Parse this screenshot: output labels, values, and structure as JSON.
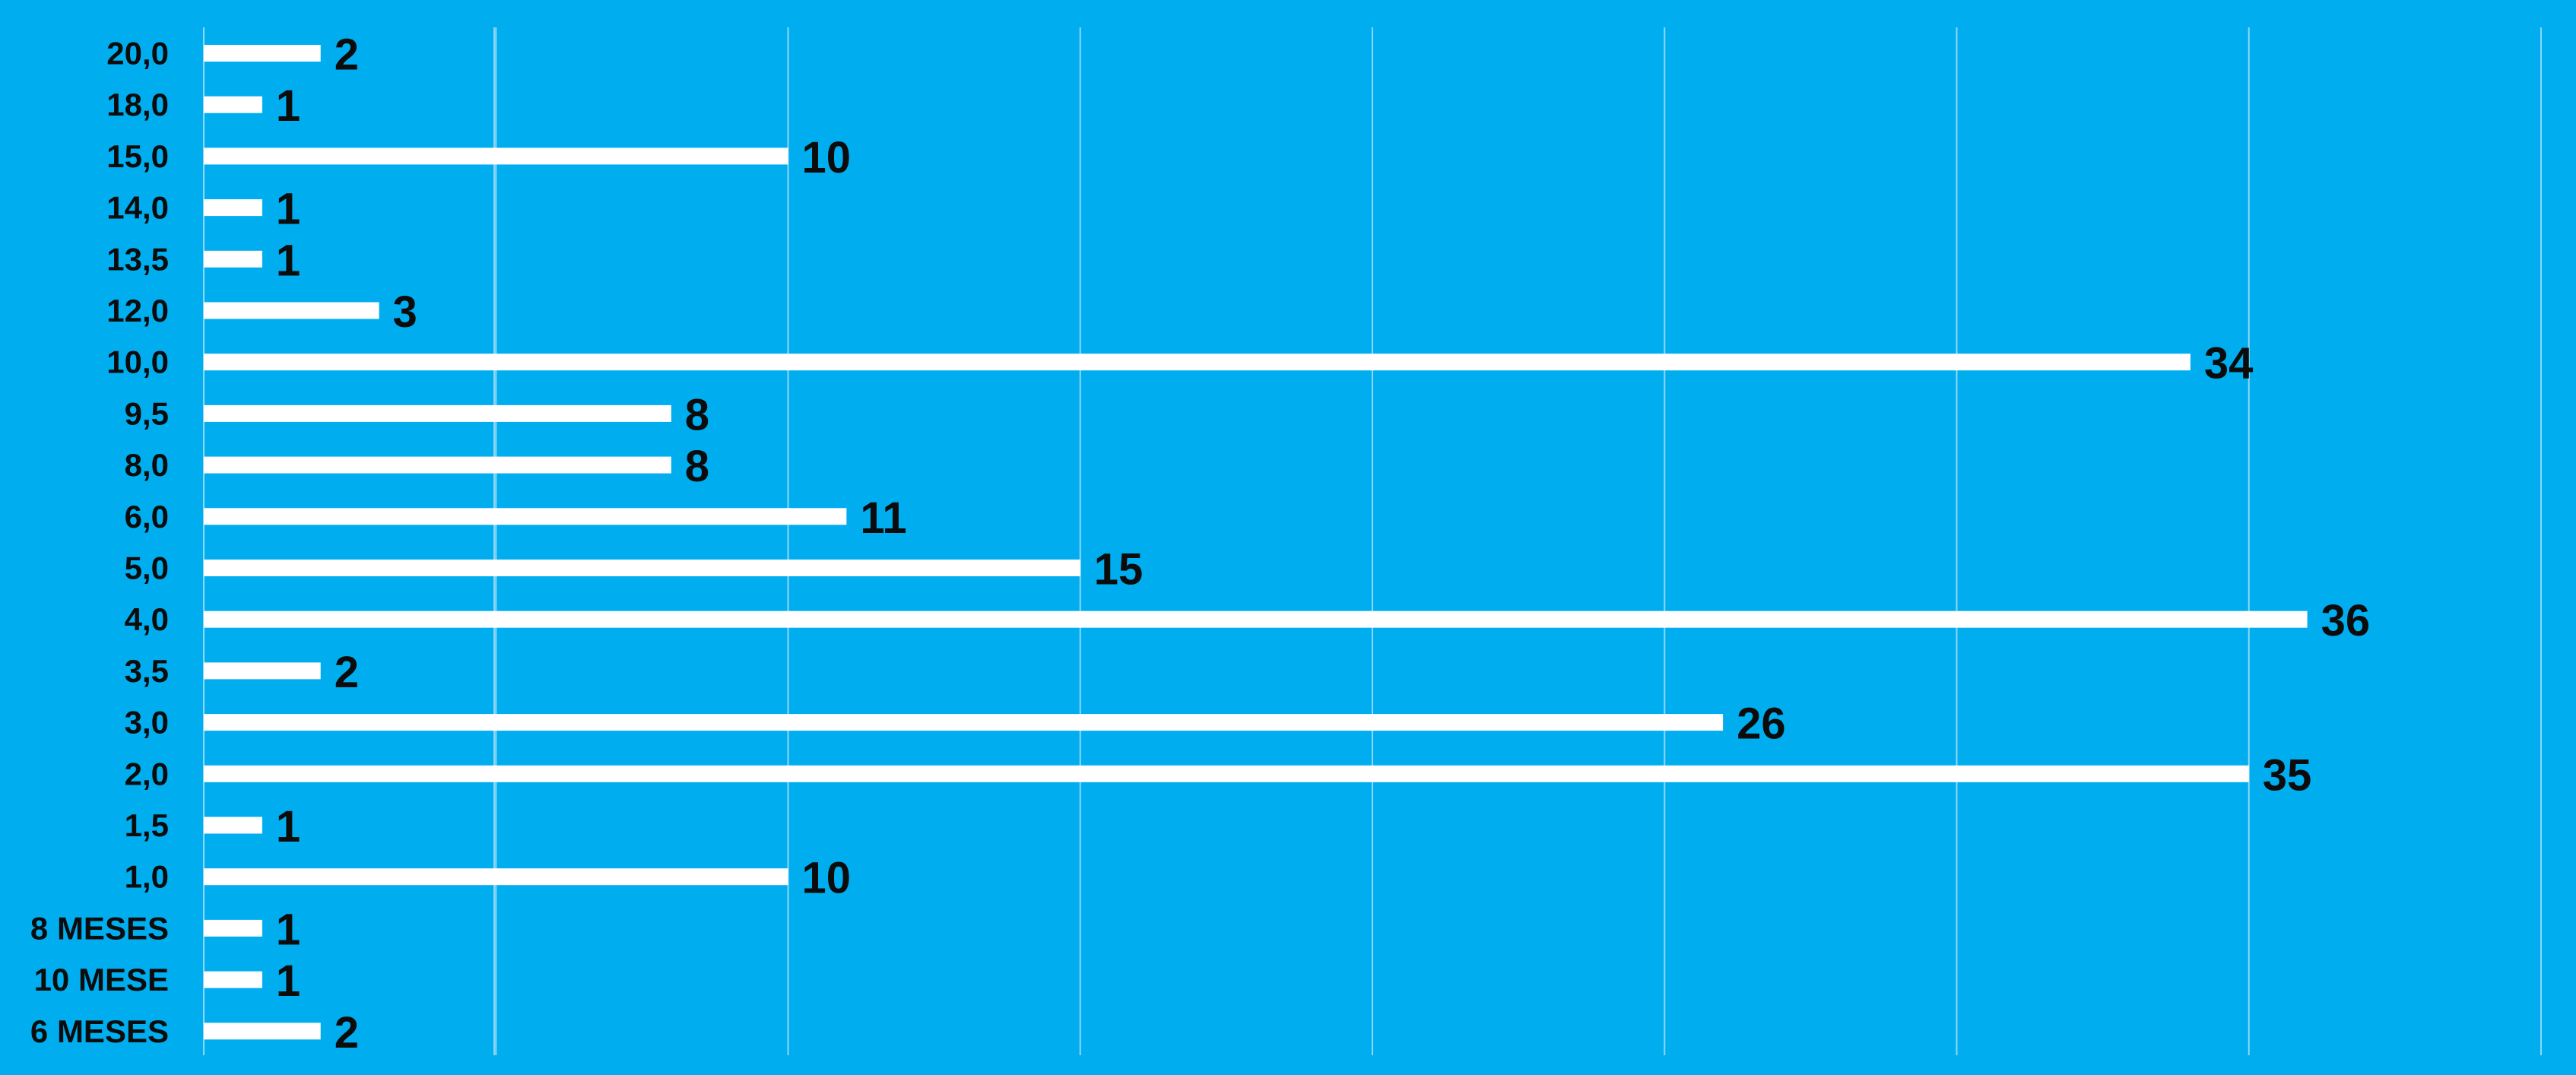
{
  "colors": {
    "background": "#00aef0",
    "bar": "#ffffff",
    "gridline": "#8fd6f5",
    "label_text": "#0c0c0c"
  },
  "chart_data": {
    "type": "bar",
    "orientation": "horizontal",
    "title": "",
    "xlabel": "",
    "ylabel": "",
    "categories": [
      "20,0",
      "18,0",
      "15,0",
      "14,0",
      "13,5",
      "12,0",
      "10,0",
      "9,5",
      "8,0",
      "6,0",
      "5,0",
      "4,0",
      "3,5",
      "3,0",
      "2,0",
      "1,5",
      "1,0",
      "8 MESES",
      "10 MESE",
      "6 MESES"
    ],
    "values": [
      2,
      1,
      10,
      1,
      1,
      3,
      34,
      8,
      8,
      11,
      15,
      36,
      2,
      26,
      35,
      1,
      10,
      1,
      1,
      2
    ],
    "data_labels": [
      "2",
      "1",
      "10",
      "1",
      "1",
      "3",
      "34",
      "8",
      "8",
      "11",
      "15",
      "36",
      "2",
      "26",
      "35",
      "1",
      "10",
      "1",
      "1",
      "2"
    ],
    "xlim": [
      0,
      40
    ],
    "gridlines": [
      5,
      10,
      15,
      20,
      25,
      30,
      35,
      40
    ],
    "grid": "vertical",
    "legend": "none",
    "axis_tick_labels_shown": false
  }
}
